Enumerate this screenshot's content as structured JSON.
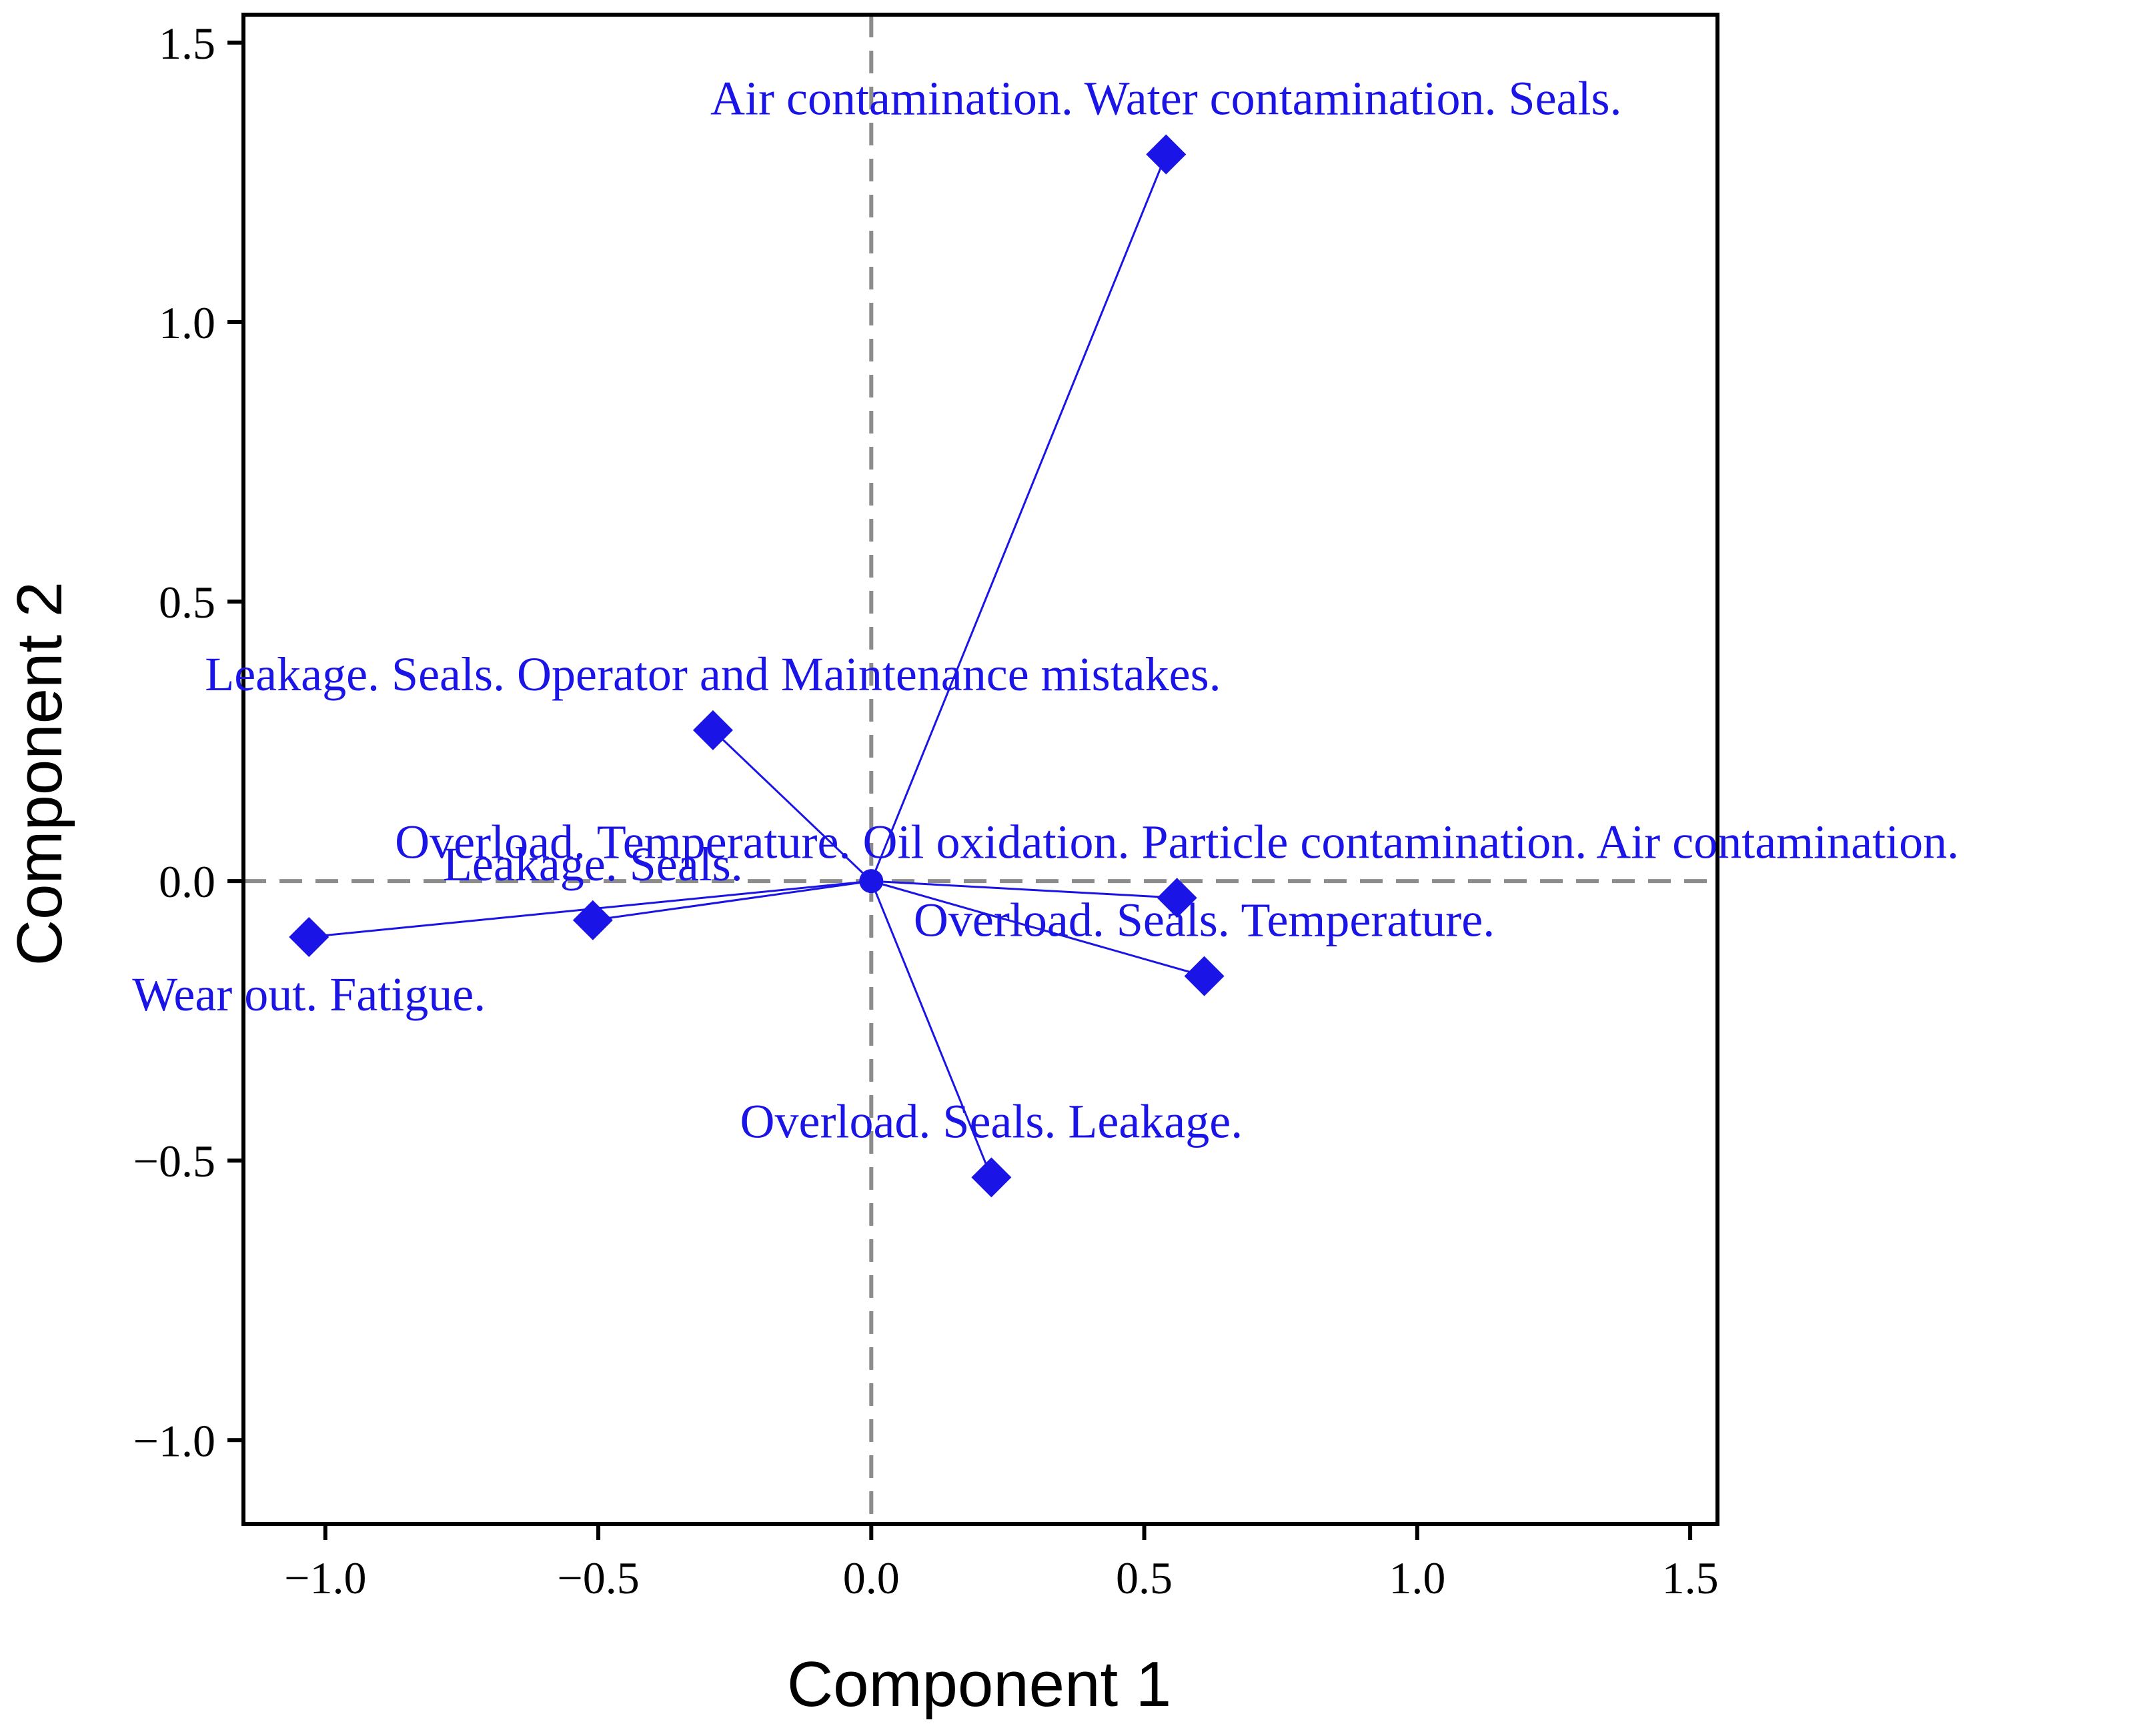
{
  "chart_data": {
    "type": "scatter",
    "subtype": "biplot",
    "title": "",
    "xlabel": "Component 1",
    "ylabel": "Component 2",
    "xlim": [
      -1.15,
      1.55
    ],
    "ylim": [
      -1.15,
      1.55
    ],
    "xticks": [
      -1.0,
      -0.5,
      0.0,
      0.5,
      1.0,
      1.5
    ],
    "xtick_labels": [
      "−1.0",
      "−0.5",
      "0.0",
      "0.5",
      "1.0",
      "1.5"
    ],
    "yticks": [
      -1.0,
      -0.5,
      0.0,
      0.5,
      1.0,
      1.5
    ],
    "ytick_labels": [
      "−1.0",
      "−0.5",
      "0.0",
      "0.5",
      "1.0",
      "1.5"
    ],
    "reference_lines": {
      "x": 0,
      "y": 0,
      "style": "dashed"
    },
    "origin": {
      "x": 0,
      "y": 0
    },
    "color": "#1a14e6",
    "axis_color": "#000000",
    "reference_color": "#8c8c8c",
    "points": [
      {
        "x": 0.54,
        "y": 1.3
      },
      {
        "x": -0.29,
        "y": 0.27
      },
      {
        "x": 0.56,
        "y": -0.03
      },
      {
        "x": 0.61,
        "y": -0.17
      },
      {
        "x": -0.51,
        "y": -0.07
      },
      {
        "x": -1.03,
        "y": -0.1
      },
      {
        "x": 0.22,
        "y": -0.53
      }
    ],
    "annotations": [
      {
        "text": "Air contamination. Water contamination. Seals.",
        "x": 0.54,
        "y": 1.3,
        "pos": "above"
      },
      {
        "text": "Leakage. Seals. Operator and Maintenance mistakes.",
        "x": -0.29,
        "y": 0.27,
        "pos": "above"
      },
      {
        "text": "Overload. Temperature. Oil oxidation. Particle contamination. Air contamination.",
        "x": 0.56,
        "y": -0.03,
        "pos": "above"
      },
      {
        "text": "Overload. Seals. Temperature.",
        "x": 0.61,
        "y": -0.17,
        "pos": "above"
      },
      {
        "text": "Leakage. Seals.",
        "x": -0.51,
        "y": -0.07,
        "pos": "above"
      },
      {
        "text": "Wear out. Fatigue.",
        "x": -1.03,
        "y": -0.1,
        "pos": "below"
      },
      {
        "text": "Overload. Seals. Leakage.",
        "x": 0.22,
        "y": -0.53,
        "pos": "above"
      }
    ]
  }
}
